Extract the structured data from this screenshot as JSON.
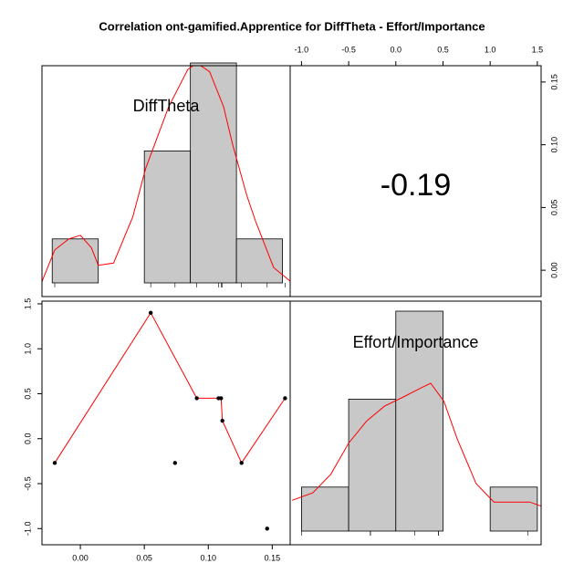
{
  "chart_data": [
    {
      "type": "histogram",
      "title": "Correlation ont-gamified.Apprentice for DiffTheta - Effort/Importance",
      "label": "DiffTheta",
      "bins": [
        -0.022,
        0.014,
        0.05,
        0.086,
        0.122,
        0.158
      ],
      "values": [
        1,
        0,
        3,
        5,
        1
      ],
      "color": "#c8c8c8",
      "density": {
        "color": "#ff0000",
        "x": [
          -0.03,
          -0.02,
          -0.009,
          0.0,
          0.0086,
          0.014,
          0.026,
          0.041,
          0.051,
          0.069,
          0.084,
          0.091,
          0.101,
          0.112,
          0.119,
          0.13,
          0.137,
          0.151,
          0.164
        ],
        "values": [
          0.03,
          0.75,
          1.0,
          1.08,
          0.8,
          0.4,
          0.45,
          1.5,
          2.6,
          4.0,
          4.85,
          5.0,
          4.8,
          4.0,
          3.15,
          2.0,
          1.4,
          0.35,
          0.04
        ]
      }
    },
    {
      "type": "correlation",
      "value": -0.19,
      "xlim": [
        -1.12,
        1.54
      ],
      "xticks": [
        {
          "value": -1.0,
          "label": "-1.0"
        },
        -0.5,
        {
          "value": 0.0,
          "label": "0.0"
        },
        0.5,
        {
          "value": 1.0,
          "label": "1.0"
        },
        1.5
      ],
      "ylim": [
        -0.021,
        0.163
      ],
      "yticks": [
        {
          "value": 0.0,
          "label": "0.00"
        },
        0.05,
        {
          "value": 0.1,
          "label": "0.10"
        },
        0.15
      ]
    },
    {
      "type": "scatter",
      "color": "#000000",
      "x": [
        -0.02,
        0.055,
        0.074,
        0.091,
        0.108,
        0.11,
        0.111,
        0.126,
        0.146,
        0.16
      ],
      "values": [
        -0.27,
        1.4,
        -0.27,
        0.45,
        0.45,
        0.45,
        0.2,
        -0.27,
        -1.0,
        0.45
      ],
      "smooth": {
        "color": "#ff0000",
        "x": [
          -0.02,
          0.055,
          0.091,
          0.11,
          0.111,
          0.126,
          0.16
        ],
        "values": [
          -0.27,
          1.4,
          0.45,
          0.45,
          0.2,
          -0.27,
          0.45
        ]
      },
      "xlim": [
        -0.03,
        0.164
      ],
      "xticks": [
        {
          "value": 0.0,
          "label": "0.00"
        },
        0.05,
        {
          "value": 0.1,
          "label": "0.10"
        },
        0.15
      ],
      "ylim": [
        -1.18,
        1.53
      ],
      "yticks": [
        1.5,
        {
          "value": 1.0,
          "label": "1.0"
        },
        0.5,
        {
          "value": 0.0,
          "label": "0.0"
        },
        -0.5,
        {
          "value": -1.0,
          "label": "-1.0"
        }
      ]
    },
    {
      "type": "histogram",
      "label": "Effort/Importance",
      "bins": [
        -1.0,
        -0.5,
        0.0,
        0.5,
        1.0,
        1.5
      ],
      "values": [
        1,
        3,
        5,
        0,
        1
      ],
      "color": "#c8c8c8",
      "density": {
        "color": "#ff0000",
        "x": [
          -1.1,
          -0.88,
          -0.69,
          -0.5,
          -0.31,
          -0.12,
          0.08,
          0.27,
          0.37,
          0.51,
          0.65,
          0.85,
          1.04,
          1.23,
          1.42,
          1.55
        ],
        "values": [
          0.7,
          0.87,
          1.29,
          2.0,
          2.5,
          2.84,
          3.05,
          3.26,
          3.36,
          2.95,
          2.1,
          1.08,
          0.66,
          0.66,
          0.66,
          0.56
        ]
      }
    }
  ]
}
